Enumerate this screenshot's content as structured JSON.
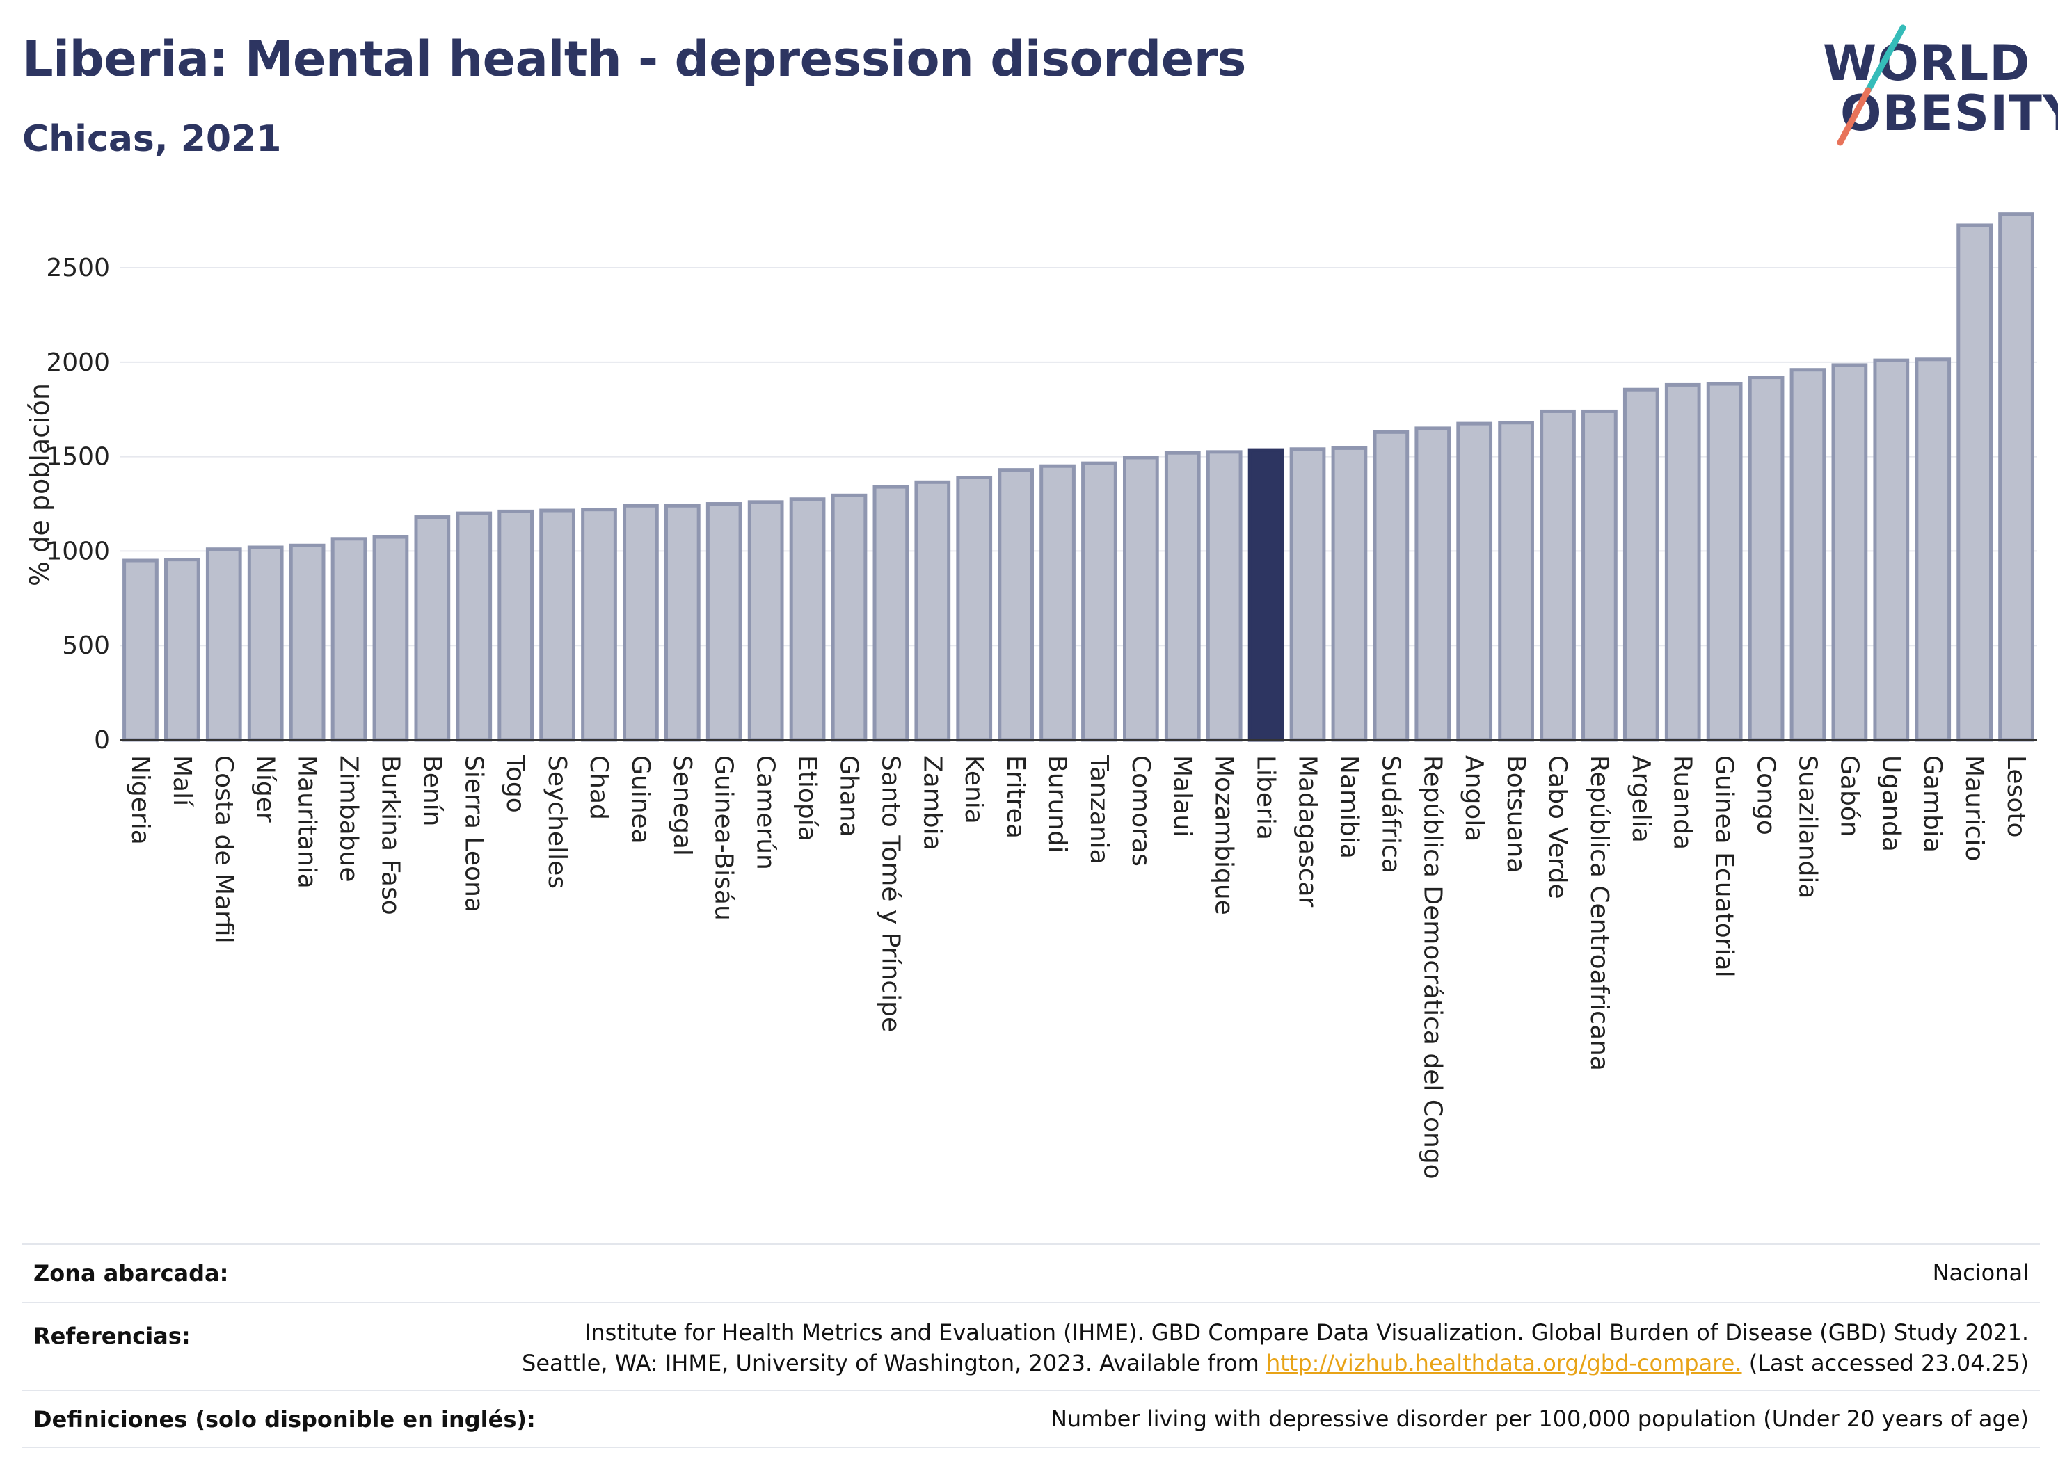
{
  "header": {
    "title": "Liberia: Mental health - depression disorders",
    "subtitle": "Chicas, 2021"
  },
  "logo": {
    "line1": "WORLD",
    "line2": "OBESITY"
  },
  "chart_data": {
    "type": "bar",
    "ylabel": "% de población",
    "xlabel": "",
    "ylim": [
      0,
      2850
    ],
    "yticks": [
      0,
      500,
      1000,
      1500,
      2000,
      2500
    ],
    "highlight": "Liberia",
    "colors": {
      "bar": "#bcc0ce",
      "bar_edge": "#8f96b0",
      "highlight": "#2d3561",
      "grid": "#e6e8ee"
    },
    "categories": [
      "Nigeria",
      "Malí",
      "Costa de Marfil",
      "Níger",
      "Mauritania",
      "Zimbabue",
      "Burkina Faso",
      "Benín",
      "Sierra Leona",
      "Togo",
      "Seychelles",
      "Chad",
      "Guinea",
      "Senegal",
      "Guinea-Bisáu",
      "Camerún",
      "Etiopía",
      "Ghana",
      "Santo Tomé y Príncipe",
      "Zambia",
      "Kenia",
      "Eritrea",
      "Burundi",
      "Tanzania",
      "Comoras",
      "Malaui",
      "Mozambique",
      "Liberia",
      "Madagascar",
      "Namibia",
      "Sudáfrica",
      "República Democrática del Congo",
      "Angola",
      "Botsuana",
      "Cabo Verde",
      "República Centroafricana",
      "Argelia",
      "Ruanda",
      "Guinea Ecuatorial",
      "Congo",
      "Suazilandia",
      "Gabón",
      "Uganda",
      "Gambia",
      "Mauricio",
      "Lesoto"
    ],
    "values": [
      950,
      955,
      1010,
      1020,
      1030,
      1065,
      1075,
      1180,
      1200,
      1210,
      1215,
      1220,
      1240,
      1240,
      1250,
      1260,
      1275,
      1295,
      1340,
      1365,
      1390,
      1430,
      1450,
      1465,
      1495,
      1520,
      1525,
      1535,
      1540,
      1545,
      1630,
      1650,
      1675,
      1680,
      1740,
      1740,
      1855,
      1880,
      1885,
      1920,
      1960,
      1985,
      2010,
      2015,
      2725,
      2785
    ]
  },
  "footer": {
    "rows": [
      {
        "label": "Zona abarcada:",
        "value_lines": [
          "Nacional"
        ]
      },
      {
        "label": "Referencias:",
        "value_lines": [
          "Institute for Health Metrics and Evaluation (IHME). GBD Compare Data Visualization. Global Burden of Disease (GBD) Study 2021.",
          "Seattle, WA: IHME, University of Washington, 2023. Available from"
        ],
        "link": "http://vizhub.healthdata.org/gbd-compare.",
        "after_link": " (Last accessed 23.04.25)"
      },
      {
        "label": "Definiciones (solo disponible en inglés):",
        "value_lines": [
          "Number living with depressive disorder per 100,000 population (Under 20 years of age)"
        ]
      }
    ]
  }
}
